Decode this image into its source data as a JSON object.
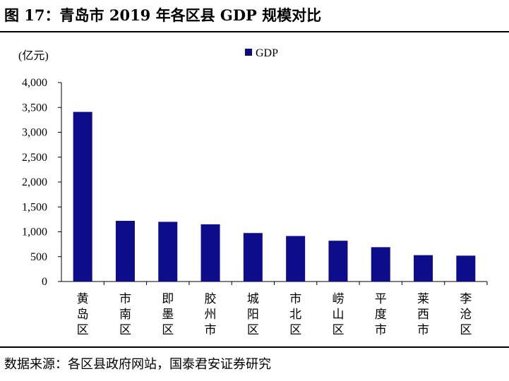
{
  "figure": {
    "title": "图 17：青岛市 2019 年各区县  GDP  规模对比",
    "source": "数据来源：各区县政府网站，国泰君安证券研究"
  },
  "chart_data": {
    "type": "bar",
    "title": "",
    "ylabel": "(亿元)",
    "xlabel": "",
    "ylim": [
      0,
      4000
    ],
    "yticks": [
      0,
      500,
      1000,
      1500,
      2000,
      2500,
      3000,
      3500,
      4000
    ],
    "ytick_labels": [
      "0",
      "500",
      "1,000",
      "1,500",
      "2,000",
      "2,500",
      "3,000",
      "3,500",
      "4,000"
    ],
    "grid": false,
    "legend_position": "top-center",
    "categories": [
      "黄岛区",
      "市南区",
      "即墨区",
      "胶州市",
      "城阳区",
      "市北区",
      "崂山区",
      "平度市",
      "莱西市",
      "李沧区"
    ],
    "series": [
      {
        "name": "GDP",
        "color": "#0d0d8c",
        "values": [
          3410,
          1220,
          1200,
          1150,
          975,
          915,
          820,
          690,
          530,
          520
        ]
      }
    ]
  }
}
